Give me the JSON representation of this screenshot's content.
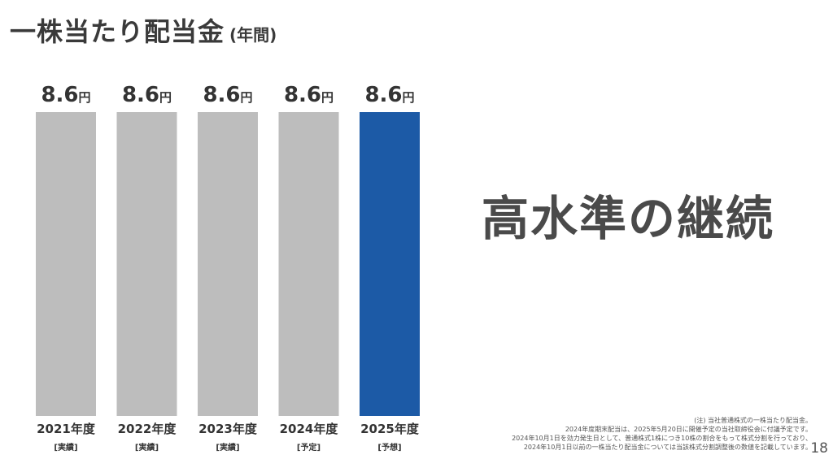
{
  "title": {
    "main": "一株当たり配当金",
    "sub": "(年間)"
  },
  "headline": "高水準の継続",
  "chart_data": {
    "type": "bar",
    "categories": [
      "2021年度",
      "2022年度",
      "2023年度",
      "2024年度",
      "2025年度"
    ],
    "category_notes": [
      "[実績]",
      "[実績]",
      "[実績]",
      "[予定]",
      "[予想]"
    ],
    "values": [
      8.6,
      8.6,
      8.6,
      8.6,
      8.6
    ],
    "value_labels": [
      "8.6",
      "8.6",
      "8.6",
      "8.6",
      "8.6"
    ],
    "unit": "円",
    "colors": [
      "#bdbdbd",
      "#bdbdbd",
      "#bdbdbd",
      "#bdbdbd",
      "#1c5aa6"
    ],
    "ylim": [
      0,
      8.6
    ],
    "grid": false,
    "legend": "none"
  },
  "notes": [
    "(注) 当社普通株式の一株当たり配当金。",
    "2024年度期末配当は、2025年5月20日に開催予定の当社取締役会に付議予定です。",
    "2024年10月1日を効力発生日として、普通株式1株につき10株の割合をもって株式分割を行っており、",
    "2024年10月1日以前の一株当たり配当金については当該株式分割調整後の数値を記載しています。"
  ],
  "page_number": "18"
}
